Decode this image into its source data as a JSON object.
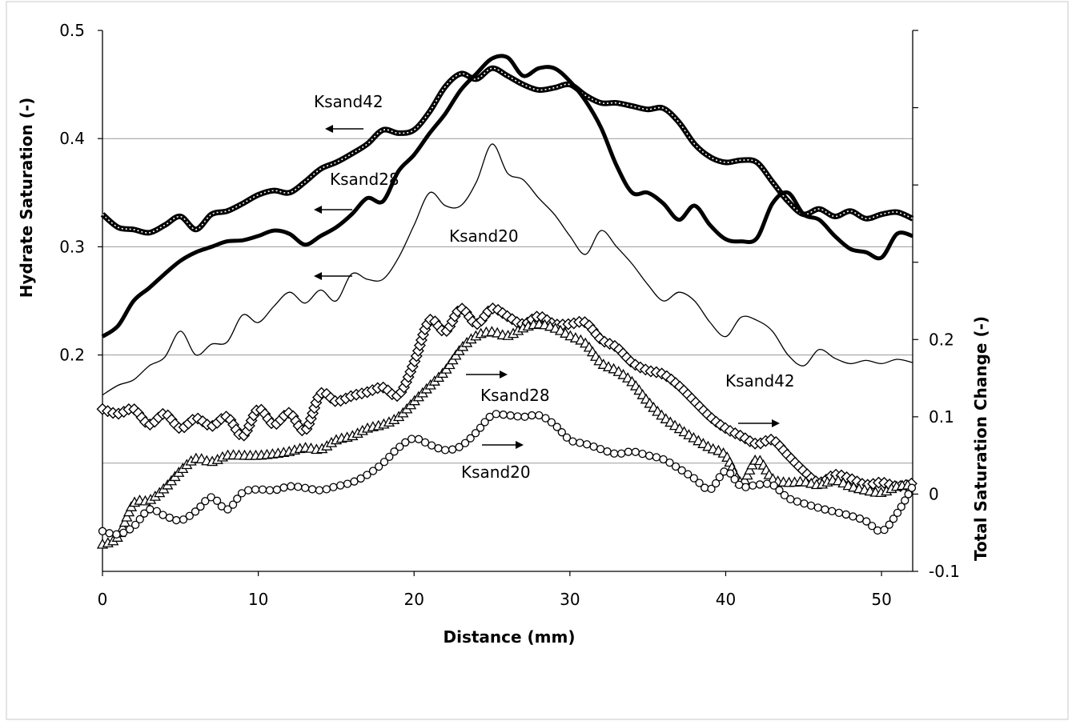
{
  "chart_data": {
    "type": "line",
    "xlabel": "Distance (mm)",
    "ylabel_left": "Hydrate Saturation (-)",
    "ylabel_right": "Total Saturation Change (-)",
    "xlim": [
      0,
      52
    ],
    "ylim_left": [
      0.0,
      0.5
    ],
    "ylim_right": [
      -0.1,
      0.6
    ],
    "x_ticks": [
      "0",
      "10",
      "20",
      "30",
      "40",
      "50"
    ],
    "y_left_ticks": [
      "0.2",
      "0.3",
      "0.4",
      "0.5"
    ],
    "y_left_tick_values": [
      0.2,
      0.3,
      0.4,
      0.5
    ],
    "y_right_ticks": [
      "-0.1",
      "0",
      "0.1",
      "0.2"
    ],
    "y_right_tick_values": [
      -0.1,
      0.0,
      0.1,
      0.2
    ],
    "gridlines_left": [
      0.1,
      0.2,
      0.3,
      0.4
    ],
    "grid": true,
    "legend": "none",
    "series": [
      {
        "label": "Ksand42",
        "axis": "left",
        "style": "thick-dashed",
        "x": [
          0,
          1,
          2,
          3,
          4,
          5,
          6,
          7,
          8,
          9,
          10,
          11,
          12,
          13,
          14,
          15,
          16,
          17,
          18,
          19,
          20,
          21,
          22,
          23,
          24,
          25,
          26,
          27,
          28,
          29,
          30,
          31,
          32,
          33,
          34,
          35,
          36,
          37,
          38,
          39,
          40,
          41,
          42,
          43,
          44,
          45,
          46,
          47,
          48,
          49,
          50,
          51,
          52
        ],
        "y": [
          0.33,
          0.318,
          0.316,
          0.313,
          0.32,
          0.328,
          0.316,
          0.33,
          0.333,
          0.34,
          0.348,
          0.352,
          0.35,
          0.36,
          0.372,
          0.378,
          0.386,
          0.395,
          0.408,
          0.405,
          0.408,
          0.425,
          0.448,
          0.46,
          0.455,
          0.465,
          0.458,
          0.45,
          0.445,
          0.447,
          0.45,
          0.44,
          0.433,
          0.433,
          0.43,
          0.427,
          0.428,
          0.415,
          0.395,
          0.383,
          0.378,
          0.38,
          0.378,
          0.36,
          0.342,
          0.33,
          0.335,
          0.328,
          0.333,
          0.326,
          0.33,
          0.332,
          0.326
        ]
      },
      {
        "label": "Ksand28",
        "axis": "left",
        "style": "thick-solid",
        "x": [
          0,
          1,
          2,
          3,
          4,
          5,
          6,
          7,
          8,
          9,
          10,
          11,
          12,
          13,
          14,
          15,
          16,
          17,
          18,
          19,
          20,
          21,
          22,
          23,
          24,
          25,
          26,
          27,
          28,
          29,
          30,
          31,
          32,
          33,
          34,
          35,
          36,
          37,
          38,
          39,
          40,
          41,
          42,
          43,
          44,
          45,
          46,
          47,
          48,
          49,
          50,
          51,
          52
        ],
        "y": [
          0.217,
          0.227,
          0.25,
          0.262,
          0.275,
          0.287,
          0.295,
          0.3,
          0.305,
          0.306,
          0.31,
          0.315,
          0.312,
          0.302,
          0.31,
          0.318,
          0.33,
          0.345,
          0.342,
          0.37,
          0.385,
          0.405,
          0.423,
          0.445,
          0.46,
          0.474,
          0.475,
          0.458,
          0.465,
          0.465,
          0.453,
          0.435,
          0.41,
          0.375,
          0.35,
          0.35,
          0.34,
          0.325,
          0.338,
          0.32,
          0.307,
          0.305,
          0.308,
          0.34,
          0.35,
          0.33,
          0.325,
          0.31,
          0.298,
          0.295,
          0.29,
          0.312,
          0.31
        ]
      },
      {
        "label": "Ksand20",
        "axis": "left",
        "style": "thin-solid",
        "x": [
          0,
          1,
          2,
          3,
          4,
          5,
          6,
          7,
          8,
          9,
          10,
          11,
          12,
          13,
          14,
          15,
          16,
          17,
          18,
          19,
          20,
          21,
          22,
          23,
          24,
          25,
          26,
          27,
          28,
          29,
          30,
          31,
          32,
          33,
          34,
          35,
          36,
          37,
          38,
          39,
          40,
          41,
          42,
          43,
          44,
          45,
          46,
          47,
          48,
          49,
          50,
          51,
          52
        ],
        "y": [
          0.163,
          0.172,
          0.177,
          0.19,
          0.198,
          0.222,
          0.2,
          0.21,
          0.212,
          0.237,
          0.23,
          0.245,
          0.258,
          0.248,
          0.26,
          0.25,
          0.275,
          0.27,
          0.27,
          0.29,
          0.32,
          0.35,
          0.338,
          0.338,
          0.36,
          0.395,
          0.368,
          0.362,
          0.345,
          0.33,
          0.31,
          0.293,
          0.315,
          0.3,
          0.284,
          0.265,
          0.25,
          0.258,
          0.25,
          0.23,
          0.217,
          0.235,
          0.232,
          0.222,
          0.2,
          0.19,
          0.205,
          0.197,
          0.192,
          0.195,
          0.192,
          0.196,
          0.193
        ]
      },
      {
        "label": "Ksand42",
        "axis": "right",
        "style": "diamond-markers",
        "x": [
          0,
          1,
          2,
          3,
          4,
          5,
          6,
          7,
          8,
          9,
          10,
          11,
          12,
          13,
          14,
          15,
          16,
          17,
          18,
          19,
          20,
          21,
          22,
          23,
          24,
          25,
          26,
          27,
          28,
          29,
          30,
          31,
          32,
          33,
          34,
          35,
          36,
          37,
          38,
          39,
          40,
          41,
          42,
          43,
          44,
          45,
          46,
          47,
          48,
          49,
          50,
          51,
          52
        ],
        "y": [
          0.11,
          0.104,
          0.11,
          0.09,
          0.104,
          0.085,
          0.098,
          0.088,
          0.1,
          0.075,
          0.11,
          0.09,
          0.105,
          0.082,
          0.13,
          0.12,
          0.127,
          0.132,
          0.138,
          0.128,
          0.17,
          0.225,
          0.21,
          0.24,
          0.22,
          0.24,
          0.23,
          0.22,
          0.23,
          0.22,
          0.22,
          0.222,
          0.2,
          0.19,
          0.17,
          0.16,
          0.155,
          0.14,
          0.12,
          0.1,
          0.085,
          0.075,
          0.065,
          0.07,
          0.05,
          0.03,
          0.015,
          0.025,
          0.02,
          0.012,
          0.015,
          0.01,
          0.014
        ]
      },
      {
        "label": "Ksand28",
        "axis": "right",
        "style": "triangle-markers",
        "x": [
          0,
          1,
          2,
          3,
          4,
          5,
          6,
          7,
          8,
          9,
          10,
          11,
          12,
          13,
          14,
          15,
          16,
          17,
          18,
          19,
          20,
          21,
          22,
          23,
          24,
          25,
          26,
          27,
          28,
          29,
          30,
          31,
          32,
          33,
          34,
          35,
          36,
          37,
          38,
          39,
          40,
          41,
          42,
          43,
          44,
          45,
          46,
          47,
          48,
          49,
          50,
          51,
          52
        ],
        "y": [
          -0.065,
          -0.055,
          -0.012,
          -0.008,
          0.008,
          0.03,
          0.046,
          0.042,
          0.05,
          0.05,
          0.05,
          0.052,
          0.055,
          0.06,
          0.058,
          0.07,
          0.075,
          0.085,
          0.09,
          0.1,
          0.12,
          0.14,
          0.16,
          0.188,
          0.205,
          0.21,
          0.205,
          0.215,
          0.22,
          0.215,
          0.205,
          0.195,
          0.17,
          0.16,
          0.145,
          0.12,
          0.1,
          0.085,
          0.072,
          0.06,
          0.05,
          0.015,
          0.045,
          0.02,
          0.015,
          0.016,
          0.012,
          0.018,
          0.01,
          0.005,
          0.002,
          0.01,
          0.012
        ]
      },
      {
        "label": "Ksand20",
        "axis": "right",
        "style": "circle-markers",
        "x": [
          0,
          1,
          2,
          3,
          4,
          5,
          6,
          7,
          8,
          9,
          10,
          11,
          12,
          13,
          14,
          15,
          16,
          17,
          18,
          19,
          20,
          21,
          22,
          23,
          24,
          25,
          26,
          27,
          28,
          29,
          30,
          31,
          32,
          33,
          34,
          35,
          36,
          37,
          38,
          39,
          40,
          41,
          42,
          43,
          44,
          45,
          46,
          47,
          48,
          49,
          50,
          51,
          52
        ],
        "y": [
          -0.048,
          -0.052,
          -0.042,
          -0.02,
          -0.028,
          -0.034,
          -0.022,
          -0.004,
          -0.02,
          0.002,
          0.006,
          0.005,
          0.01,
          0.008,
          0.005,
          0.01,
          0.015,
          0.025,
          0.04,
          0.06,
          0.072,
          0.064,
          0.057,
          0.062,
          0.08,
          0.102,
          0.102,
          0.1,
          0.102,
          0.09,
          0.07,
          0.065,
          0.058,
          0.052,
          0.055,
          0.05,
          0.045,
          0.033,
          0.02,
          0.006,
          0.03,
          0.01,
          0.012,
          0.012,
          -0.005,
          -0.012,
          -0.018,
          -0.023,
          -0.028,
          -0.035,
          -0.048,
          -0.025,
          0.01
        ]
      }
    ],
    "annotations": [
      {
        "text": "Ksand42",
        "points_to": "left axis"
      },
      {
        "text": "Ksand28",
        "points_to": "left axis"
      },
      {
        "text": "Ksand20",
        "points_to": "left axis"
      },
      {
        "text": "Ksand28",
        "points_to": "right axis"
      },
      {
        "text": "Ksand42",
        "points_to": "right axis"
      },
      {
        "text": "Ksand20",
        "points_to": "right axis"
      }
    ]
  }
}
